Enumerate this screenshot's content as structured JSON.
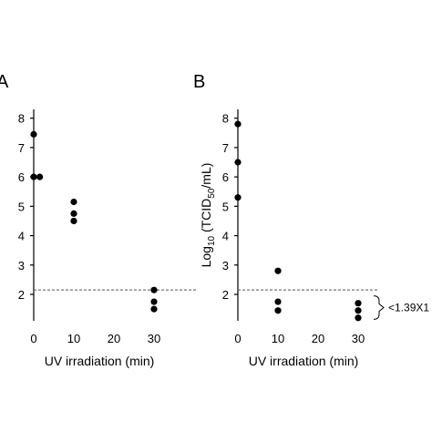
{
  "chart_data": [
    {
      "type": "scatter",
      "panel_label": "A",
      "xlabel": "UV irradiation (min)",
      "ylabel": "",
      "xticks": [
        0,
        10,
        20,
        30
      ],
      "yticks": [
        2,
        3,
        4,
        5,
        6,
        7,
        8
      ],
      "xlim": [
        0,
        30
      ],
      "ylim": [
        1.1,
        8.3
      ],
      "threshold": 2.15,
      "threshold_label": "",
      "points": [
        {
          "x": 0,
          "y": 7.45
        },
        {
          "x": 0,
          "y": 6.0
        },
        {
          "x": 1.5,
          "y": 6.0
        },
        {
          "x": 10,
          "y": 5.15
        },
        {
          "x": 10,
          "y": 4.75
        },
        {
          "x": 10,
          "y": 4.5
        },
        {
          "x": 30,
          "y": 2.15
        },
        {
          "x": 30,
          "y": 1.75
        },
        {
          "x": 30,
          "y": 1.5
        }
      ]
    },
    {
      "type": "scatter",
      "panel_label": "B",
      "xlabel": "UV irradiation (min)",
      "ylabel": "Log10 (TCID50/mL)",
      "xticks": [
        0,
        10,
        20,
        30
      ],
      "yticks": [
        2,
        3,
        4,
        5,
        6,
        7,
        8
      ],
      "xlim": [
        0,
        30
      ],
      "ylim": [
        1.1,
        8.3
      ],
      "threshold": 2.15,
      "threshold_label": "<1.39X1",
      "points": [
        {
          "x": 0,
          "y": 7.8
        },
        {
          "x": 0,
          "y": 6.5
        },
        {
          "x": 0,
          "y": 5.3
        },
        {
          "x": 10,
          "y": 2.8
        },
        {
          "x": 10,
          "y": 1.75
        },
        {
          "x": 10,
          "y": 1.45
        },
        {
          "x": 30,
          "y": 1.7
        },
        {
          "x": 30,
          "y": 1.45
        },
        {
          "x": 30,
          "y": 1.2
        }
      ]
    }
  ]
}
